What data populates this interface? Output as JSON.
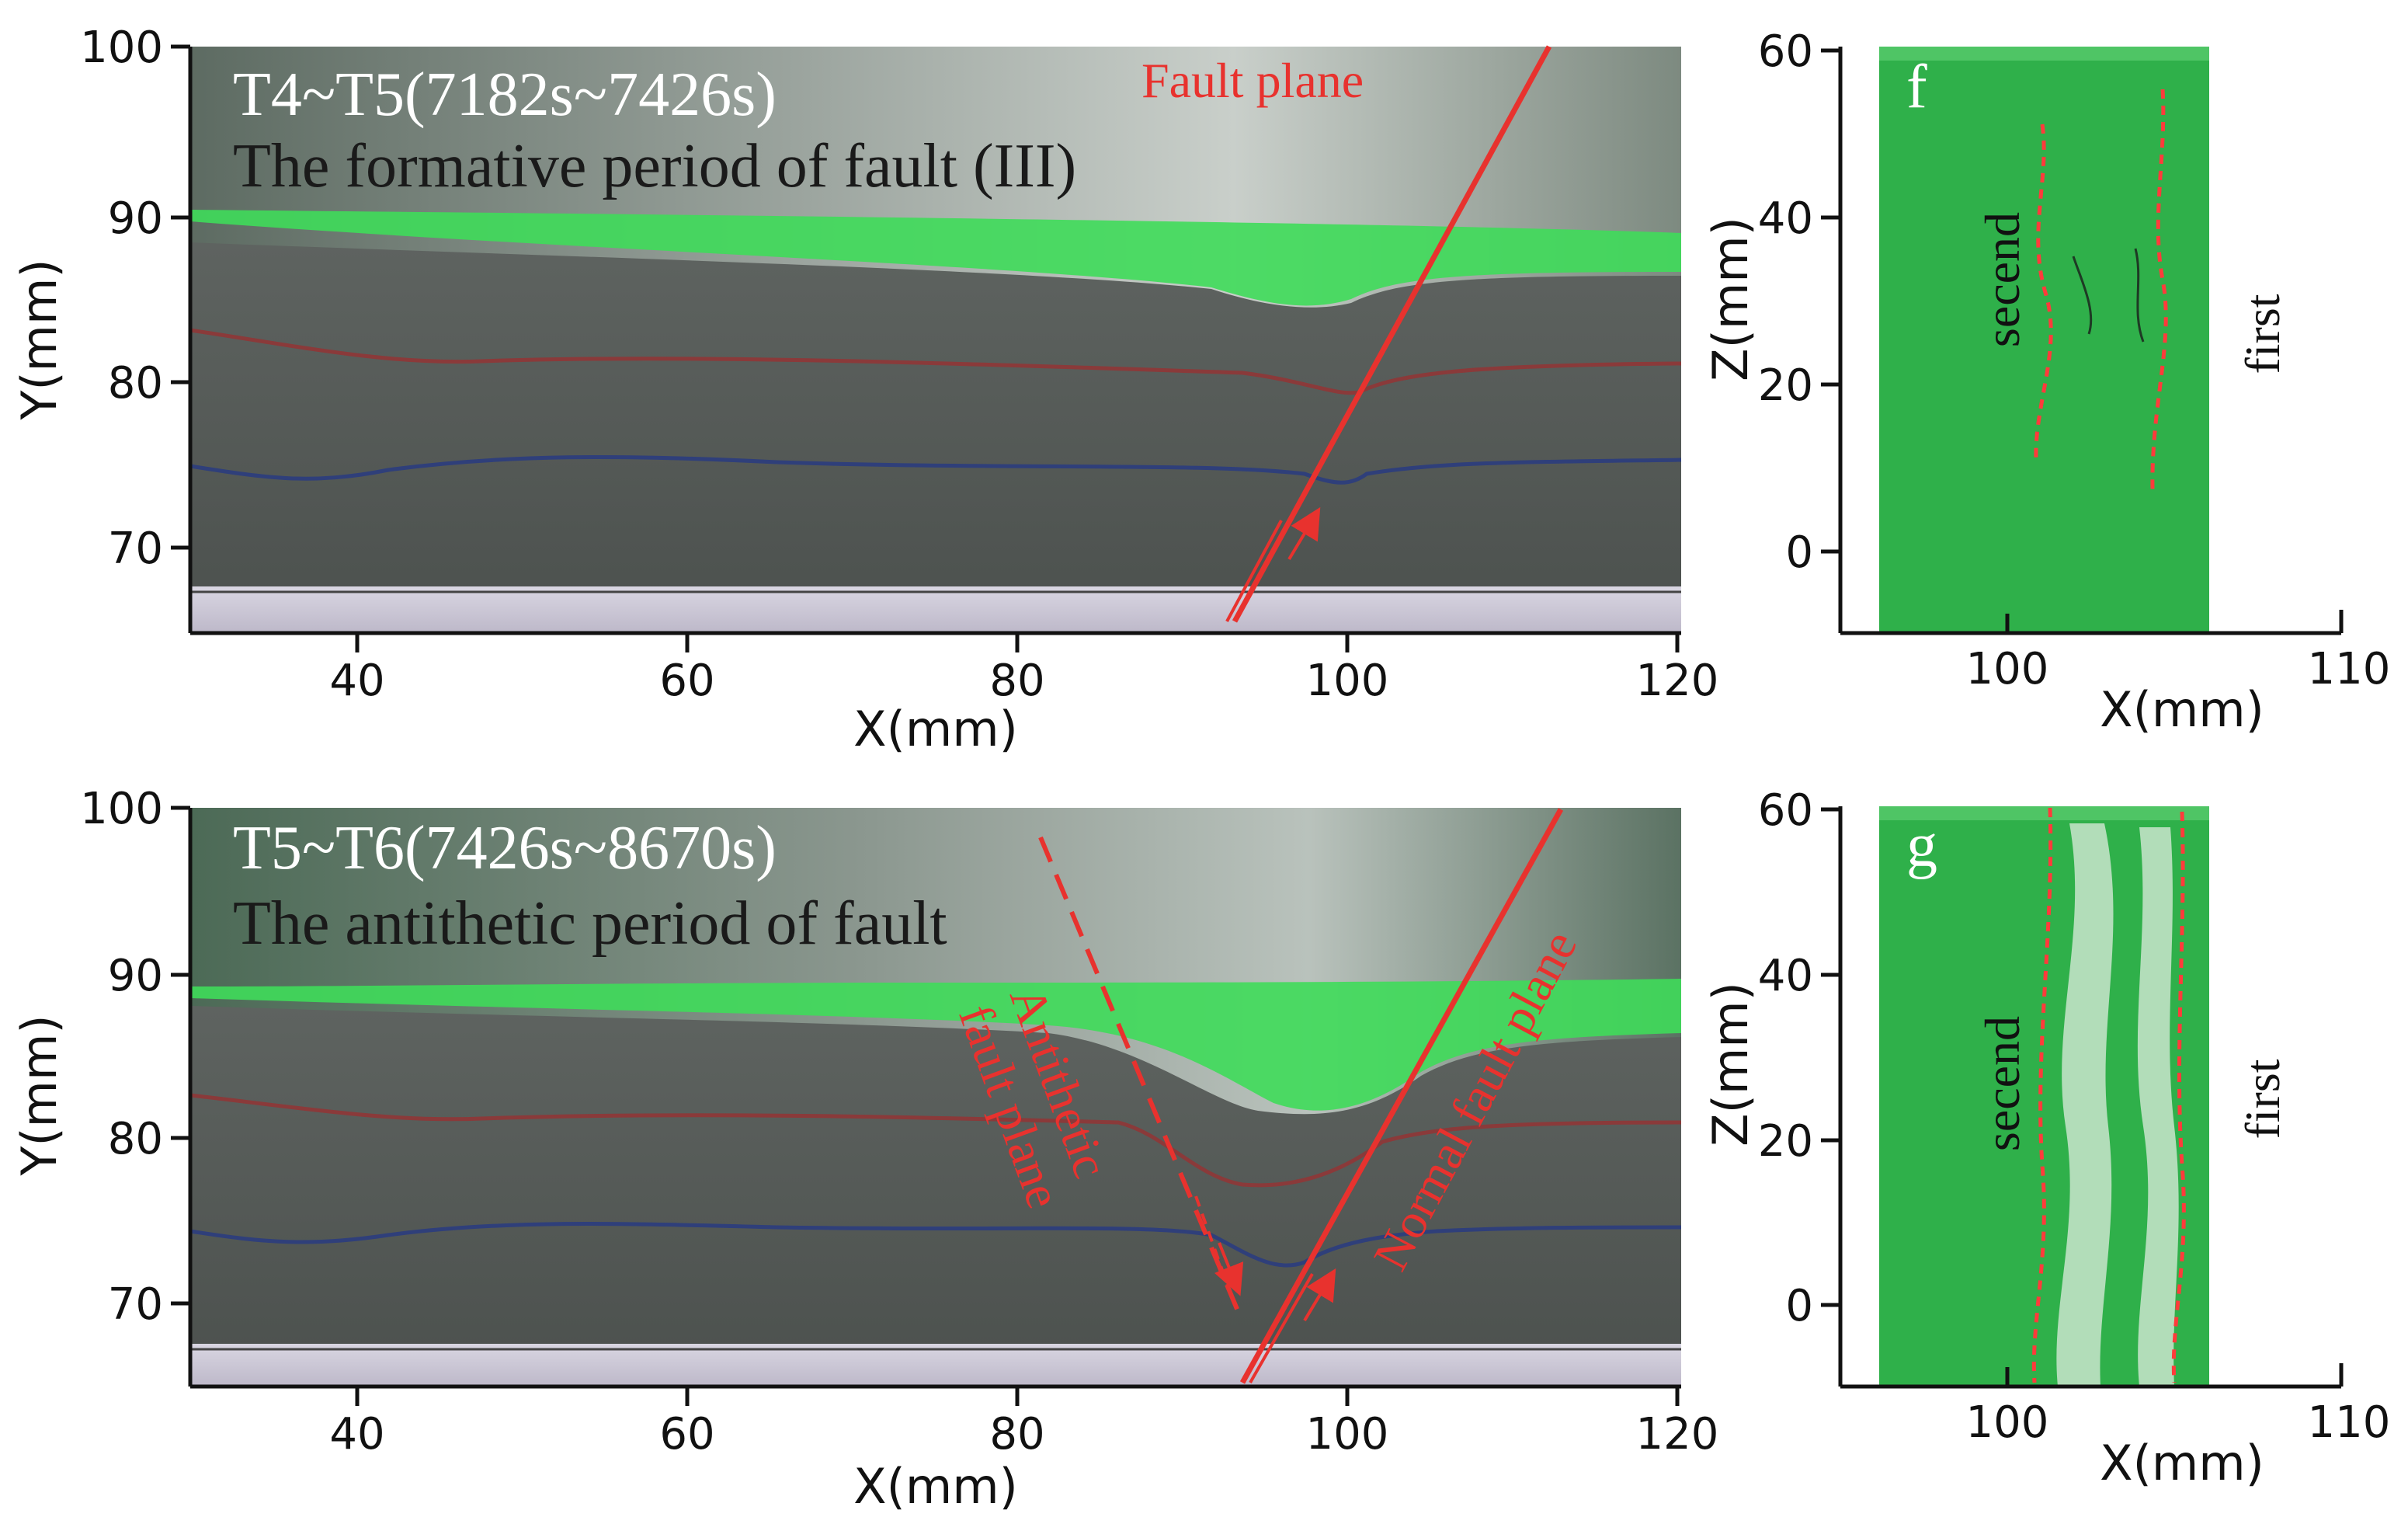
{
  "figure": {
    "panels": [
      {
        "id": "top-section",
        "time_label": "T4~T5(7182s~7426s)",
        "description_label": "The formative period of fault (III)",
        "fault_labels": [
          "Fault plane"
        ],
        "x_axis": {
          "label": "X(mm)",
          "ticks": [
            "40",
            "60",
            "80",
            "100",
            "120"
          ],
          "range": [
            30,
            120
          ]
        },
        "y_axis": {
          "label": "Y(mm)",
          "ticks": [
            "70",
            "80",
            "90",
            "100"
          ],
          "range": [
            65,
            100
          ]
        }
      },
      {
        "id": "bottom-section",
        "time_label": "T5~T6(7426s~8670s)",
        "description_label": "The antithetic period of fault",
        "fault_labels": [
          "Antithetic",
          "fault plane",
          "Normal fault plane"
        ],
        "x_axis": {
          "label": "X(mm)",
          "ticks": [
            "40",
            "60",
            "80",
            "100",
            "120"
          ],
          "range": [
            30,
            120
          ]
        },
        "y_axis": {
          "label": "Y(mm)",
          "ticks": [
            "70",
            "80",
            "90",
            "100"
          ],
          "range": [
            65,
            100
          ]
        }
      },
      {
        "id": "panel-f",
        "letter": "f",
        "left_label": "secend",
        "right_label": "first",
        "x_axis": {
          "label": "X(mm)",
          "ticks": [
            "100",
            "110"
          ],
          "range": [
            95,
            110
          ]
        },
        "z_axis": {
          "label": "Z(mm)",
          "ticks": [
            "0",
            "20",
            "40",
            "60"
          ],
          "range": [
            -10,
            60
          ]
        }
      },
      {
        "id": "panel-g",
        "letter": "g",
        "left_label": "secend",
        "right_label": "first",
        "x_axis": {
          "label": "X(mm)",
          "ticks": [
            "100",
            "110"
          ],
          "range": [
            95,
            110
          ]
        },
        "z_axis": {
          "label": "Z(mm)",
          "ticks": [
            "0",
            "20",
            "40",
            "60"
          ],
          "range": [
            -10,
            60
          ]
        }
      }
    ],
    "colors": {
      "fault_red": "#e8322e",
      "sand_grey": "#5a5f5c",
      "green_fill": "#2fb04a",
      "red_layer": "#8a3a3a",
      "blue_layer": "#2f3f7a"
    }
  }
}
